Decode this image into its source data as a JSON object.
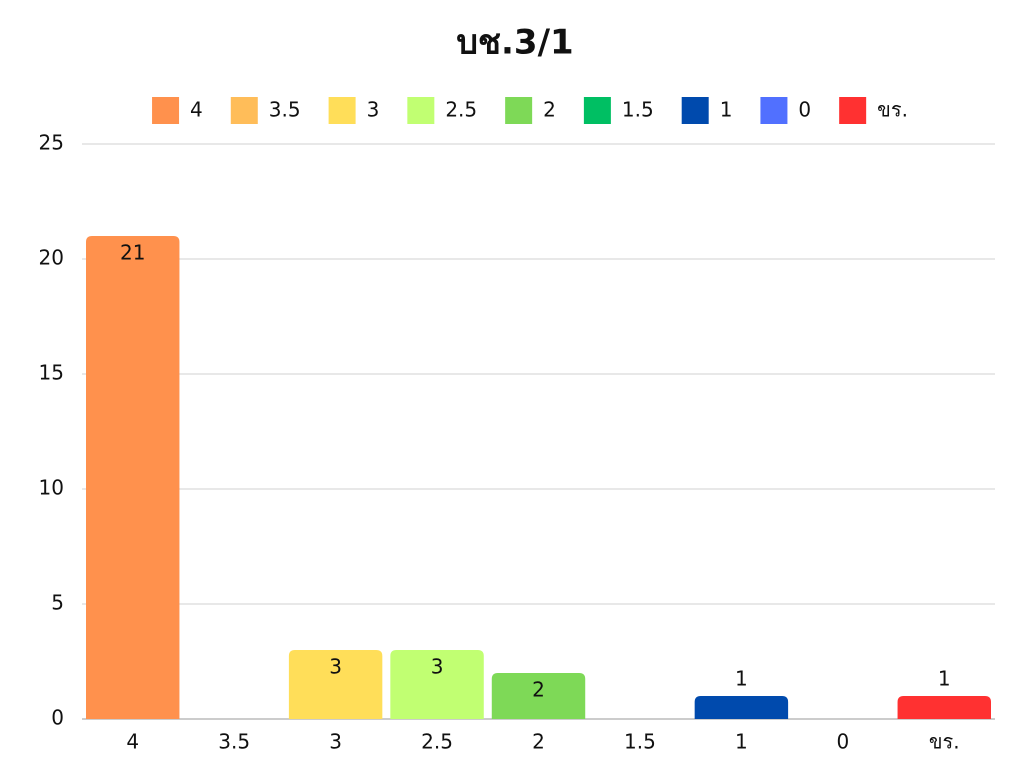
{
  "chart_data": {
    "type": "bar",
    "title": "บช.3/1",
    "categories": [
      "4",
      "3.5",
      "3",
      "2.5",
      "2",
      "1.5",
      "1",
      "0",
      "ขร."
    ],
    "values": [
      21,
      0,
      3,
      3,
      2,
      0,
      1,
      0,
      1
    ],
    "colors": [
      "#ff914d",
      "#ffbd59",
      "#ffde59",
      "#c1ff72",
      "#7ed957",
      "#00bf63",
      "#004aad",
      "#5170ff",
      "#ff3131"
    ],
    "ylim": [
      0,
      25
    ],
    "yticks": [
      0,
      5,
      10,
      15,
      20,
      25
    ],
    "grid": true,
    "legend": "top"
  }
}
